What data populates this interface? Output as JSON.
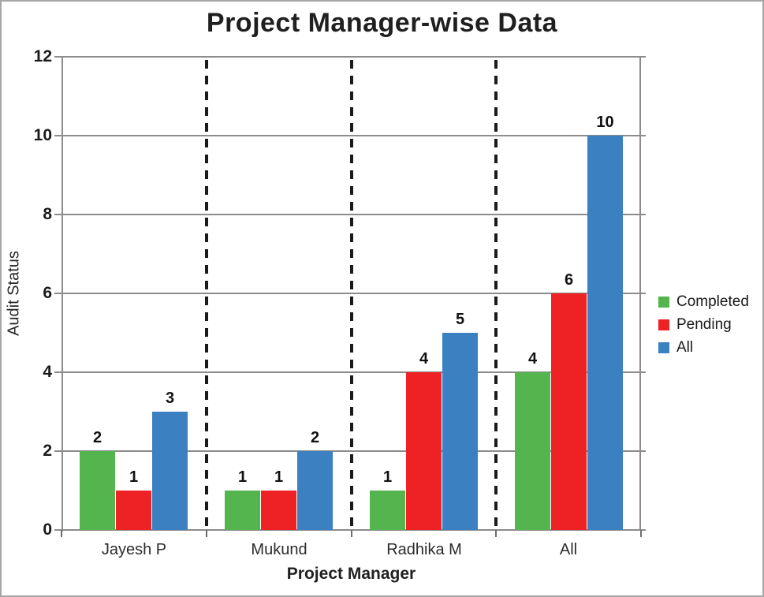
{
  "chart_data": {
    "type": "bar",
    "title": "Project Manager-wise Data",
    "xlabel": "Project Manager",
    "ylabel": "Audit Status",
    "categories": [
      "Jayesh P",
      "Mukund",
      "Radhika M",
      "All"
    ],
    "series": [
      {
        "name": "Completed",
        "color": "#54b44e",
        "values": [
          2,
          1,
          1,
          4
        ]
      },
      {
        "name": "Pending",
        "color": "#ee2224",
        "values": [
          1,
          1,
          4,
          6
        ]
      },
      {
        "name": "All",
        "color": "#3b80c0",
        "values": [
          3,
          2,
          5,
          10
        ]
      }
    ],
    "ylim": [
      0,
      12
    ],
    "yticks": [
      0,
      2,
      4,
      6,
      8,
      10,
      12
    ],
    "grid": true,
    "gridline_color": "#8c8c8c",
    "separator_color": "#1a1a1a",
    "legend_position": "right",
    "bar_value_labels_shown": true
  },
  "frame": {
    "background": "#ffffff",
    "border_color": "#a6a6a6"
  }
}
